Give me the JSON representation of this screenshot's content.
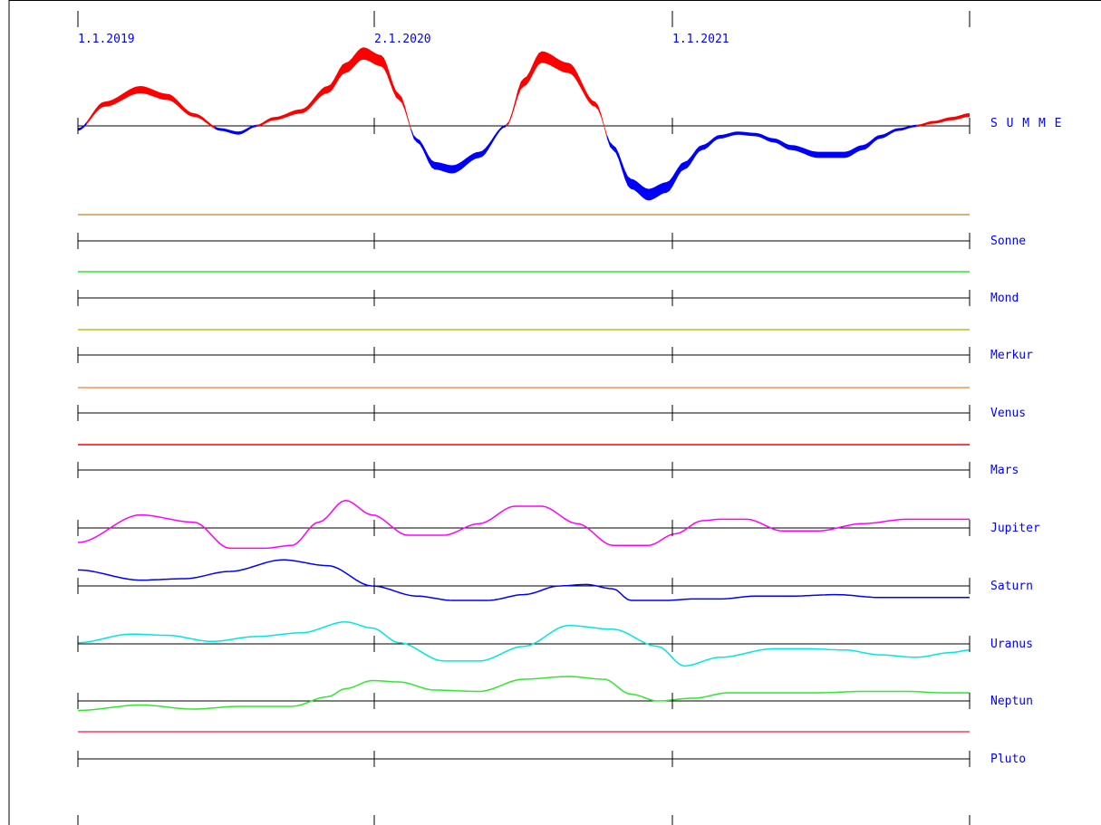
{
  "colors": {
    "axis": "#000000",
    "label": "#0000ff",
    "positive": "#ff0000",
    "negative": "#0000ff"
  },
  "chart_data": {
    "type": "line",
    "x_dates": [
      "1.1.2019",
      "2.1.2020",
      "1.1.2021"
    ],
    "x_range": [
      "1.1.2019",
      "31.12.2021"
    ],
    "summe": {
      "name": "S U M M E",
      "x": [
        0,
        0.03,
        0.07,
        0.1,
        0.13,
        0.16,
        0.18,
        0.2,
        0.22,
        0.25,
        0.28,
        0.3,
        0.32,
        0.34,
        0.36,
        0.38,
        0.4,
        0.42,
        0.45,
        0.48,
        0.5,
        0.52,
        0.55,
        0.58,
        0.6,
        0.62,
        0.64,
        0.66,
        0.68,
        0.7,
        0.72,
        0.74,
        0.76,
        0.78,
        0.8,
        0.83,
        0.86,
        0.88,
        0.9,
        0.92,
        0.94,
        0.96,
        0.98,
        1
      ],
      "y": [
        -0.05,
        0.3,
        0.5,
        0.4,
        0.15,
        -0.05,
        -0.1,
        0.0,
        0.1,
        0.2,
        0.5,
        0.8,
        1.0,
        0.9,
        0.4,
        -0.2,
        -0.55,
        -0.6,
        -0.4,
        0.0,
        0.6,
        0.95,
        0.8,
        0.3,
        -0.3,
        -0.8,
        -0.95,
        -0.85,
        -0.55,
        -0.3,
        -0.15,
        -0.1,
        -0.12,
        -0.2,
        -0.3,
        -0.4,
        -0.4,
        -0.3,
        -0.15,
        -0.05,
        0.0,
        0.05,
        0.1,
        0.15
      ]
    },
    "series": [
      {
        "name": "Sonne",
        "color": "#d2964b",
        "flat": true
      },
      {
        "name": "Mond",
        "color": "#32e632",
        "flat": true
      },
      {
        "name": "Merkur",
        "color": "#bebe1e",
        "flat": true
      },
      {
        "name": "Venus",
        "color": "#f09650",
        "flat": true
      },
      {
        "name": "Mars",
        "color": "#ff0000",
        "flat": true
      },
      {
        "name": "Jupiter",
        "color": "#ff00ff",
        "flat": false,
        "x": [
          0,
          0.07,
          0.13,
          0.17,
          0.21,
          0.24,
          0.27,
          0.3,
          0.33,
          0.37,
          0.41,
          0.45,
          0.49,
          0.52,
          0.56,
          0.6,
          0.64,
          0.67,
          0.7,
          0.72,
          0.75,
          0.79,
          0.83,
          0.88,
          0.93,
          0.97,
          1
        ],
        "y": [
          -0.5,
          0.45,
          0.2,
          -0.7,
          -0.7,
          -0.6,
          0.2,
          0.95,
          0.45,
          -0.25,
          -0.25,
          0.15,
          0.75,
          0.75,
          0.15,
          -0.6,
          -0.6,
          -0.2,
          0.25,
          0.3,
          0.3,
          -0.1,
          -0.1,
          0.15,
          0.3,
          0.3,
          0.3
        ]
      },
      {
        "name": "Saturn",
        "color": "#0000ff",
        "flat": false,
        "x": [
          0,
          0.07,
          0.12,
          0.17,
          0.23,
          0.28,
          0.33,
          0.38,
          0.42,
          0.46,
          0.5,
          0.54,
          0.57,
          0.6,
          0.62,
          0.66,
          0.69,
          0.72,
          0.76,
          0.8,
          0.85,
          0.9,
          0.95,
          1
        ],
        "y": [
          0.55,
          0.2,
          0.25,
          0.5,
          0.9,
          0.7,
          0.0,
          -0.35,
          -0.5,
          -0.5,
          -0.3,
          0.0,
          0.05,
          -0.1,
          -0.5,
          -0.5,
          -0.45,
          -0.45,
          -0.35,
          -0.35,
          -0.3,
          -0.4,
          -0.4,
          -0.4
        ]
      },
      {
        "name": "Uranus",
        "color": "#00e6e6",
        "flat": false,
        "x": [
          0,
          0.06,
          0.1,
          0.15,
          0.2,
          0.25,
          0.3,
          0.33,
          0.36,
          0.41,
          0.45,
          0.5,
          0.55,
          0.6,
          0.65,
          0.68,
          0.72,
          0.78,
          0.82,
          0.86,
          0.9,
          0.94,
          0.98,
          1
        ],
        "y": [
          0.05,
          0.4,
          0.35,
          0.1,
          0.3,
          0.45,
          0.9,
          0.65,
          0.05,
          -0.7,
          -0.7,
          -0.1,
          0.75,
          0.6,
          -0.1,
          -0.9,
          -0.55,
          -0.2,
          -0.2,
          -0.25,
          -0.45,
          -0.55,
          -0.35,
          -0.25
        ]
      },
      {
        "name": "Neptun",
        "color": "#32e632",
        "flat": false,
        "x": [
          0,
          0.07,
          0.13,
          0.18,
          0.24,
          0.28,
          0.3,
          0.33,
          0.36,
          0.4,
          0.45,
          0.5,
          0.55,
          0.59,
          0.62,
          0.65,
          0.69,
          0.73,
          0.78,
          0.83,
          0.88,
          0.93,
          0.97,
          1
        ],
        "y": [
          -0.35,
          -0.15,
          -0.3,
          -0.2,
          -0.2,
          0.15,
          0.45,
          0.75,
          0.7,
          0.4,
          0.35,
          0.8,
          0.9,
          0.8,
          0.25,
          0.0,
          0.1,
          0.3,
          0.3,
          0.3,
          0.35,
          0.35,
          0.3,
          0.3
        ]
      },
      {
        "name": "Pluto",
        "color": "#ff3c64",
        "flat": true
      }
    ]
  }
}
